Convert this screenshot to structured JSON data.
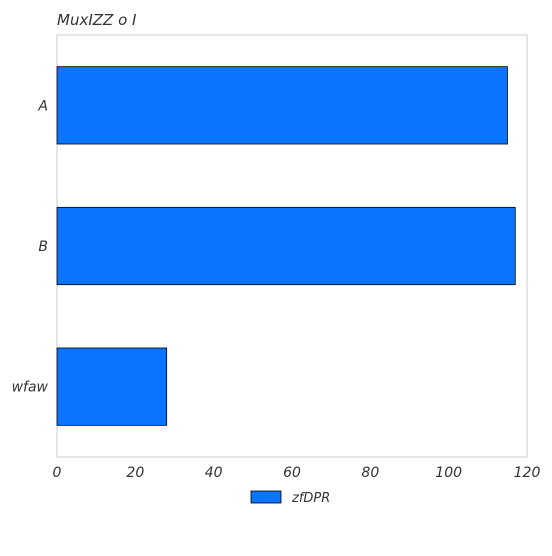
{
  "chart_data": {
    "type": "bar",
    "orientation": "horizontal",
    "title": "MuxIZZ o I",
    "xlabel": "",
    "ylabel": "",
    "categories": [
      "A",
      "B",
      "wfaw"
    ],
    "series": [
      {
        "name": "zfDPR",
        "values": [
          115,
          117,
          28
        ],
        "color": "#0a74ff"
      }
    ],
    "xlim": [
      0,
      120
    ],
    "x_ticks": [
      0,
      20,
      40,
      60,
      80,
      100,
      120
    ],
    "grid": false,
    "legend_position": "bottom-center",
    "bar_edge_color": "#000000",
    "frame_color": "#cccccc"
  }
}
